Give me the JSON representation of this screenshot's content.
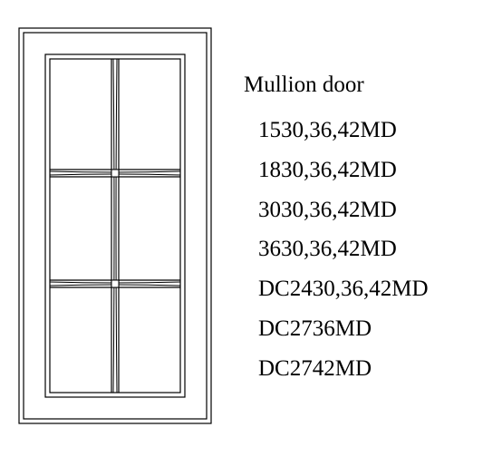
{
  "title": "Mullion door",
  "codes": [
    "1530,36,42MD",
    "1830,36,42MD",
    "3030,36,42MD",
    "3630,36,42MD",
    "DC2430,36,42MD",
    "DC2736MD",
    "DC2742MD"
  ],
  "diagram": {
    "outer_width": 214,
    "outer_height": 438,
    "stroke_color": "#000000",
    "stroke_width": 1.2,
    "background": "#ffffff",
    "panes_rows": 3,
    "panes_cols": 2
  }
}
